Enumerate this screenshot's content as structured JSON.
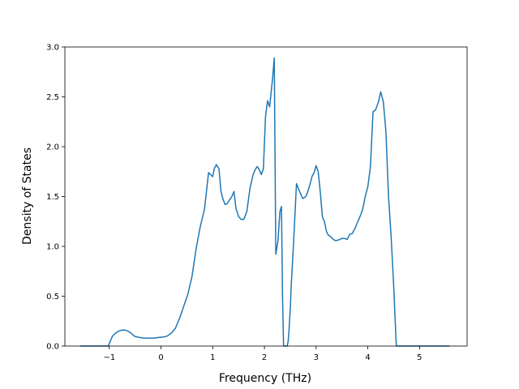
{
  "chart_data": {
    "type": "line",
    "title": "",
    "xlabel": "Frequency (THz)",
    "ylabel": "Density of States",
    "xlim": [
      -1.86,
      5.92
    ],
    "ylim": [
      0,
      3.0
    ],
    "xticks": [
      -1,
      0,
      1,
      2,
      3,
      4,
      5
    ],
    "xtick_labels": [
      "−1",
      "0",
      "1",
      "2",
      "3",
      "4",
      "5"
    ],
    "yticks": [
      0.0,
      0.5,
      1.0,
      1.5,
      2.0,
      2.5,
      3.0
    ],
    "ytick_labels": [
      "0.0",
      "0.5",
      "1.0",
      "1.5",
      "2.0",
      "2.5",
      "3.0"
    ],
    "grid": false,
    "line_color": "#1f77b4",
    "series": [
      {
        "x": [
          -1.56,
          -1.02,
          -0.99,
          -0.94,
          -0.88,
          -0.82,
          -0.76,
          -0.7,
          -0.64,
          -0.58,
          -0.52,
          -0.46,
          -0.4,
          -0.34,
          -0.26,
          -0.16,
          -0.06,
          0.04,
          0.12,
          0.2,
          0.28,
          0.36,
          0.44,
          0.52,
          0.6,
          0.68,
          0.76,
          0.84,
          0.92,
          1.0,
          1.03,
          1.07,
          1.12,
          1.16,
          1.2,
          1.24,
          1.28,
          1.33,
          1.37,
          1.41,
          1.45,
          1.5,
          1.55,
          1.6,
          1.66,
          1.72,
          1.78,
          1.82,
          1.86,
          1.9,
          1.94,
          1.98,
          2.02,
          2.06,
          2.1,
          2.13,
          2.16,
          2.19,
          2.22,
          2.26,
          2.3,
          2.33,
          2.35,
          2.37,
          2.39,
          2.41,
          2.44,
          2.46,
          2.48,
          2.5,
          2.52,
          2.56,
          2.62,
          2.68,
          2.74,
          2.8,
          2.84,
          2.88,
          2.92,
          2.96,
          3.0,
          3.04,
          3.08,
          3.12,
          3.16,
          3.2,
          3.24,
          3.28,
          3.31,
          3.36,
          3.41,
          3.46,
          3.5,
          3.55,
          3.6,
          3.65,
          3.7,
          3.75,
          3.8,
          3.85,
          3.9,
          3.95,
          4.0,
          4.05,
          4.1,
          4.15,
          4.2,
          4.25,
          4.3,
          4.35,
          4.4,
          4.45,
          4.5,
          4.55,
          4.57,
          4.6,
          4.65,
          4.7,
          4.72,
          4.75,
          4.8,
          4.85,
          4.9,
          4.95,
          4.99,
          5.05,
          5.58
        ],
        "y": [
          0.0,
          0.0,
          0.04,
          0.1,
          0.13,
          0.15,
          0.16,
          0.16,
          0.15,
          0.13,
          0.1,
          0.09,
          0.085,
          0.08,
          0.08,
          0.08,
          0.085,
          0.09,
          0.1,
          0.13,
          0.18,
          0.28,
          0.4,
          0.52,
          0.7,
          0.98,
          1.2,
          1.37,
          1.74,
          1.7,
          1.78,
          1.82,
          1.78,
          1.55,
          1.47,
          1.42,
          1.43,
          1.47,
          1.5,
          1.55,
          1.38,
          1.3,
          1.27,
          1.27,
          1.35,
          1.58,
          1.72,
          1.77,
          1.8,
          1.77,
          1.72,
          1.78,
          2.3,
          2.46,
          2.4,
          2.55,
          2.7,
          2.89,
          0.92,
          1.05,
          1.35,
          1.4,
          0.5,
          0.0,
          0.0,
          0.0,
          0.0,
          0.05,
          0.2,
          0.38,
          0.62,
          1.0,
          1.63,
          1.55,
          1.48,
          1.5,
          1.55,
          1.62,
          1.7,
          1.74,
          1.81,
          1.75,
          1.55,
          1.3,
          1.25,
          1.15,
          1.11,
          1.1,
          1.08,
          1.06,
          1.06,
          1.07,
          1.08,
          1.08,
          1.07,
          1.12,
          1.13,
          1.18,
          1.24,
          1.3,
          1.37,
          1.5,
          1.6,
          1.8,
          2.35,
          2.37,
          2.44,
          2.55,
          2.45,
          2.15,
          1.5,
          1.1,
          0.6,
          0.0,
          0.0,
          0.0,
          0.0,
          0.0,
          0.0,
          0.0,
          0.0,
          0.0,
          0.0,
          0.0,
          0.0,
          0.0,
          0.0
        ]
      }
    ]
  }
}
